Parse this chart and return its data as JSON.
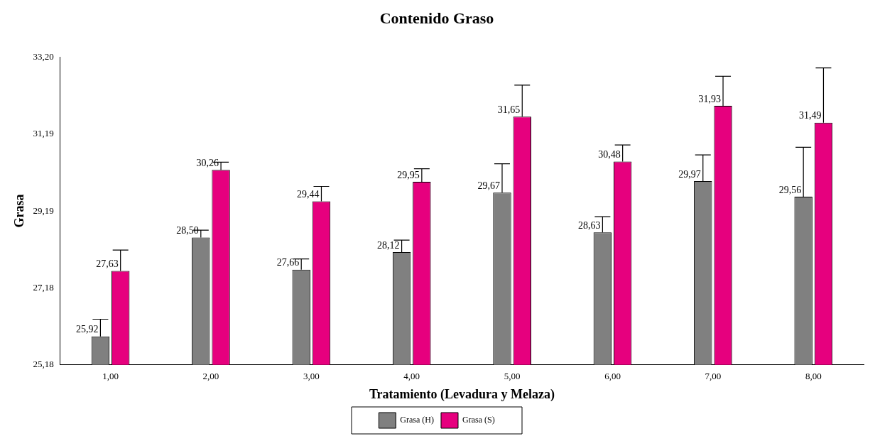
{
  "chart_data": {
    "type": "bar",
    "title": "Contenido Graso",
    "xlabel": "Tratamiento (Levadura y Melaza)",
    "ylabel": "Grasa",
    "categories": [
      "1,00",
      "2,00",
      "3,00",
      "4,00",
      "5,00",
      "6,00",
      "7,00",
      "8,00"
    ],
    "series": [
      {
        "name": "Grasa (H)",
        "color": "#808080",
        "values": [
          25.92,
          28.5,
          27.66,
          28.12,
          29.67,
          28.63,
          29.97,
          29.56
        ],
        "value_labels": [
          "25,92",
          "28,50",
          "27,66",
          "28,12",
          "29,67",
          "28,63",
          "29,97",
          "29,56"
        ],
        "errors": [
          [
            25.92,
            26.37
          ],
          [
            28.5,
            28.69
          ],
          [
            27.66,
            27.94
          ],
          [
            28.12,
            28.43
          ],
          [
            29.67,
            30.42
          ],
          [
            28.63,
            29.04
          ],
          [
            29.97,
            30.65
          ],
          [
            29.56,
            30.85
          ]
        ]
      },
      {
        "name": "Grasa (S)",
        "color": "#e6007e",
        "values": [
          27.63,
          30.26,
          29.44,
          29.95,
          31.65,
          30.48,
          31.93,
          31.49
        ],
        "value_labels": [
          "27,63",
          "30,26",
          "29,44",
          "29,95",
          "31,65",
          "30,48",
          "31,93",
          "31,49"
        ],
        "errors": [
          [
            27.63,
            28.17
          ],
          [
            30.26,
            30.46
          ],
          [
            29.44,
            29.83
          ],
          [
            29.95,
            30.29
          ],
          [
            31.65,
            32.47
          ],
          [
            30.48,
            30.91
          ],
          [
            31.93,
            32.7
          ],
          [
            31.49,
            32.92
          ]
        ]
      }
    ],
    "ylim": [
      25.18,
      33.2
    ],
    "yticks": [
      {
        "value": 25.18,
        "label": "25,18"
      },
      {
        "value": 27.18,
        "label": "27,18"
      },
      {
        "value": 29.19,
        "label": "29,19"
      },
      {
        "value": 31.19,
        "label": "31,19"
      },
      {
        "value": 33.2,
        "label": "33,20"
      }
    ],
    "grid": false,
    "legend": "bottom"
  }
}
